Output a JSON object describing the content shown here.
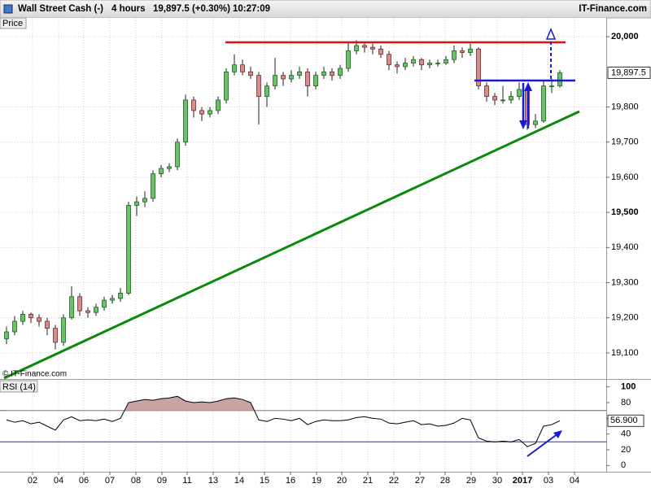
{
  "header": {
    "instrument": "Wall Street Cash (-)",
    "timeframe": "4 hours",
    "quote": "19,897.5 (+0.30%)",
    "time": "10:27:09",
    "brand": "IT-Finance.com"
  },
  "chart_data": [
    {
      "type": "candlestick",
      "panel_label": "Price",
      "watermark": "© IT-Finance.com",
      "up_color": "#66c466",
      "down_color": "#d98a8a",
      "open": [
        19140,
        19160,
        19190,
        19210,
        19200,
        19190,
        19170,
        19130,
        19200,
        19260,
        19220,
        19215,
        19230,
        19250,
        19255,
        19270,
        19520,
        19530,
        19540,
        19610,
        19625,
        19630,
        19700,
        19820,
        19790,
        19780,
        19790,
        19820,
        19900,
        19920,
        19900,
        19890,
        19830,
        19860,
        19890,
        19880,
        19890,
        19900,
        19860,
        19890,
        19900,
        19890,
        19910,
        19960,
        19975,
        19970,
        19965,
        19950,
        19920,
        19915,
        19925,
        19935,
        19920,
        19925,
        19925,
        19935,
        19960,
        19955,
        19965,
        19860,
        19830,
        19820,
        19820,
        19830,
        19850,
        19750,
        19760,
        19860,
        19860
      ],
      "high": [
        19175,
        19205,
        19220,
        19215,
        19210,
        19200,
        19180,
        19210,
        19290,
        19270,
        19230,
        19240,
        19260,
        19265,
        19285,
        19530,
        19545,
        19560,
        19620,
        19635,
        19640,
        19710,
        19835,
        19830,
        19800,
        19800,
        19830,
        19910,
        19950,
        19935,
        19915,
        19900,
        19870,
        19940,
        19900,
        19905,
        19915,
        19910,
        19900,
        19915,
        19910,
        19920,
        19985,
        19990,
        19985,
        19980,
        19975,
        19960,
        19930,
        19940,
        19945,
        19940,
        19935,
        19935,
        19945,
        19975,
        19970,
        19980,
        19970,
        19870,
        19840,
        19860,
        19845,
        19870,
        19860,
        19780,
        19875,
        19880,
        19905
      ],
      "low": [
        19125,
        19150,
        19180,
        19185,
        19175,
        19150,
        19110,
        19120,
        19195,
        19205,
        19200,
        19205,
        19220,
        19240,
        19245,
        19265,
        19490,
        19515,
        19530,
        19600,
        19615,
        19620,
        19690,
        19770,
        19760,
        19770,
        19780,
        19810,
        19890,
        19890,
        19880,
        19750,
        19800,
        19850,
        19860,
        19870,
        19880,
        19830,
        19850,
        19880,
        19875,
        19880,
        19900,
        19950,
        19955,
        19950,
        19940,
        19905,
        19895,
        19905,
        19915,
        19905,
        19910,
        19915,
        19920,
        19925,
        19940,
        19945,
        19850,
        19815,
        19805,
        19810,
        19810,
        19820,
        19735,
        19740,
        19755,
        19840,
        19855
      ],
      "close": [
        19160,
        19190,
        19210,
        19200,
        19190,
        19170,
        19130,
        19200,
        19260,
        19220,
        19215,
        19230,
        19250,
        19255,
        19270,
        19520,
        19530,
        19540,
        19610,
        19625,
        19630,
        19700,
        19820,
        19790,
        19780,
        19790,
        19820,
        19900,
        19920,
        19900,
        19890,
        19830,
        19860,
        19890,
        19880,
        19890,
        19900,
        19860,
        19890,
        19900,
        19890,
        19910,
        19960,
        19975,
        19970,
        19965,
        19950,
        19920,
        19915,
        19925,
        19935,
        19920,
        19925,
        19925,
        19935,
        19960,
        19955,
        19965,
        19860,
        19830,
        19820,
        19820,
        19830,
        19850,
        19750,
        19760,
        19860,
        19860,
        19897.5
      ],
      "last_value_label": "19,897.5",
      "xlim": [
        -0.8,
        73.7
      ],
      "xticks": [
        {
          "value": 3.2,
          "label": "02"
        },
        {
          "value": 6.4,
          "label": "04"
        },
        {
          "value": 9.5,
          "label": "06"
        },
        {
          "value": 12.7,
          "label": "07"
        },
        {
          "value": 15.9,
          "label": "08"
        },
        {
          "value": 19.1,
          "label": "09"
        },
        {
          "value": 22.2,
          "label": "11"
        },
        {
          "value": 25.4,
          "label": "13"
        },
        {
          "value": 28.6,
          "label": "14"
        },
        {
          "value": 31.7,
          "label": "15"
        },
        {
          "value": 34.9,
          "label": "16"
        },
        {
          "value": 38.1,
          "label": "19"
        },
        {
          "value": 41.2,
          "label": "20"
        },
        {
          "value": 44.4,
          "label": "21"
        },
        {
          "value": 47.6,
          "label": "22"
        },
        {
          "value": 50.8,
          "label": "27"
        },
        {
          "value": 53.9,
          "label": "28"
        },
        {
          "value": 57.1,
          "label": "29"
        },
        {
          "value": 60.3,
          "label": "30"
        },
        {
          "value": 63.4,
          "label": "2017"
        },
        {
          "value": 66.6,
          "label": "03"
        },
        {
          "value": 69.8,
          "label": "04"
        }
      ],
      "ylim": [
        19028,
        20093
      ],
      "yticks": [
        {
          "value": 20000,
          "label": "20,000"
        },
        {
          "value": 19800,
          "label": "19,800"
        },
        {
          "value": 19700,
          "label": "19,700"
        },
        {
          "value": 19600,
          "label": "19,600"
        },
        {
          "value": 19500,
          "label": "19,500"
        },
        {
          "value": 19400,
          "label": "19,400"
        },
        {
          "value": 19300,
          "label": "19,300"
        },
        {
          "value": 19200,
          "label": "19,200"
        },
        {
          "value": 19100,
          "label": "19,100"
        }
      ],
      "grid": true
    },
    {
      "type": "line",
      "panel_label": "RSI (14)",
      "color": "#000000",
      "fill_color": "#c9a3a3",
      "values": [
        58,
        55,
        57,
        53,
        55,
        50,
        45,
        58,
        62,
        57,
        58,
        57,
        59,
        56,
        60,
        80,
        82,
        84,
        83,
        85,
        86,
        88,
        82,
        80,
        81,
        80,
        82,
        85,
        86,
        84,
        80,
        58,
        56,
        60,
        59,
        57,
        60,
        52,
        56,
        58,
        57,
        57,
        58,
        61,
        62,
        60,
        59,
        54,
        53,
        55,
        57,
        52,
        53,
        50,
        51,
        54,
        60,
        58,
        35,
        31,
        30,
        31,
        30,
        33,
        24,
        28,
        50,
        52,
        56.9
      ],
      "last_value_label": "56.900",
      "levels": [
        70,
        30
      ],
      "level_colors": [
        "#666666",
        "#2a2ab8"
      ],
      "ylim": [
        -8,
        108
      ],
      "yticks": [
        100,
        80,
        60,
        40,
        20,
        0
      ],
      "grid": true
    }
  ]
}
